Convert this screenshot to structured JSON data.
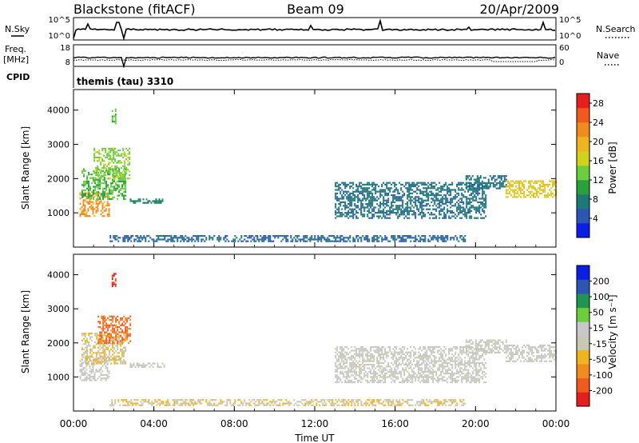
{
  "header": {
    "station": "Blackstone (fitACF)",
    "beam": "Beam 09",
    "date": "20/Apr/2009"
  },
  "panels": {
    "nsky_label": "N.Sky",
    "nsky_tick_top": "10^5",
    "nsky_tick_bottom": "10^0",
    "nsearch_label": "N.Search",
    "nsearch_tick_top": "10^5",
    "nsearch_tick_bottom": "10^0",
    "freq_label": "Freq.",
    "freq_unit": "[MHz]",
    "freq_tick_top": "18",
    "freq_tick_bottom": "8",
    "nave_label": "Nave",
    "nave_tick_top": "60",
    "nave_tick_bottom": "0",
    "cpid_label": "CPID",
    "cpid_value": "themis (tau) 3310"
  },
  "chart_data": [
    {
      "type": "heatmap",
      "title": "",
      "xlabel": "Time UT",
      "ylabel": "Slant Range [km]",
      "xlim": [
        0,
        24
      ],
      "ylim": [
        0,
        4600
      ],
      "x_ticks": [
        "00:00",
        "04:00",
        "08:00",
        "12:00",
        "16:00",
        "20:00",
        "00:00"
      ],
      "y_ticks": [
        "1000",
        "2000",
        "3000",
        "4000"
      ],
      "colorbar": {
        "label": "Power [dB]",
        "ticks": [
          "4",
          "8",
          "12",
          "16",
          "20",
          "24",
          "28"
        ],
        "range": [
          0,
          30
        ],
        "colors": [
          "#0a1ee6",
          "#2d55b4",
          "#1e7878",
          "#28a03c",
          "#6ecd3c",
          "#d2d21e",
          "#f0b41e",
          "#f08c1e",
          "#f05a1e",
          "#e61e1e"
        ]
      },
      "echo_regions": [
        {
          "t0": 0.3,
          "t1": 1.8,
          "r0": 900,
          "r1": 1600,
          "value": 22
        },
        {
          "t0": 0.4,
          "t1": 2.6,
          "r0": 1400,
          "r1": 2300,
          "value": 12
        },
        {
          "t0": 1.0,
          "t1": 2.8,
          "r0": 2000,
          "r1": 2900,
          "value": 14
        },
        {
          "t0": 1.9,
          "t1": 2.1,
          "r0": 3600,
          "r1": 4050,
          "value": 13
        },
        {
          "t0": 2.8,
          "t1": 4.5,
          "r0": 1300,
          "r1": 1420,
          "value": 8
        },
        {
          "t0": 1.8,
          "t1": 19.5,
          "r0": 150,
          "r1": 350,
          "value": 6
        },
        {
          "t0": 13.0,
          "t1": 20.5,
          "r0": 850,
          "r1": 1900,
          "value": 7
        },
        {
          "t0": 19.5,
          "t1": 21.5,
          "r0": 1700,
          "r1": 2100,
          "value": 7
        },
        {
          "t0": 21.5,
          "t1": 24.0,
          "r0": 1450,
          "r1": 1950,
          "value": 18
        }
      ]
    },
    {
      "type": "heatmap",
      "title": "",
      "xlabel": "Time UT",
      "ylabel": "Slant Range [km]",
      "xlim": [
        0,
        24
      ],
      "ylim": [
        0,
        4600
      ],
      "x_ticks": [
        "00:00",
        "04:00",
        "08:00",
        "12:00",
        "16:00",
        "20:00",
        "00:00"
      ],
      "y_ticks": [
        "1000",
        "2000",
        "3000",
        "4000"
      ],
      "colorbar": {
        "label": "Velocity [m s⁻¹]",
        "ticks": [
          "200",
          "100",
          "50",
          "15",
          "-15",
          "-50",
          "-100",
          "-200"
        ],
        "range": [
          -250,
          250
        ],
        "colors": [
          "#e61e1e",
          "#f05a1e",
          "#f08c1e",
          "#f0b41e",
          "#c8c8b4",
          "#c8c8c8",
          "#6ecd3c",
          "#1e9650",
          "#2d55b4",
          "#0a1ee6"
        ]
      },
      "echo_regions": [
        {
          "t0": 0.3,
          "t1": 1.8,
          "r0": 900,
          "r1": 1600,
          "value": 0
        },
        {
          "t0": 0.4,
          "t1": 2.6,
          "r0": 1400,
          "r1": 2300,
          "value": -40
        },
        {
          "t0": 1.2,
          "t1": 2.8,
          "r0": 2000,
          "r1": 2800,
          "value": -160
        },
        {
          "t0": 1.9,
          "t1": 2.1,
          "r0": 3600,
          "r1": 4050,
          "value": -210
        },
        {
          "t0": 2.8,
          "t1": 4.5,
          "r0": 1300,
          "r1": 1420,
          "value": 10
        },
        {
          "t0": 1.8,
          "t1": 19.5,
          "r0": 150,
          "r1": 350,
          "value": -40
        },
        {
          "t0": 13.0,
          "t1": 20.5,
          "r0": 850,
          "r1": 1900,
          "value": 0
        },
        {
          "t0": 19.5,
          "t1": 21.5,
          "r0": 1700,
          "r1": 2100,
          "value": 0
        },
        {
          "t0": 21.5,
          "t1": 24.0,
          "r0": 1450,
          "r1": 1950,
          "value": 0
        }
      ]
    }
  ]
}
